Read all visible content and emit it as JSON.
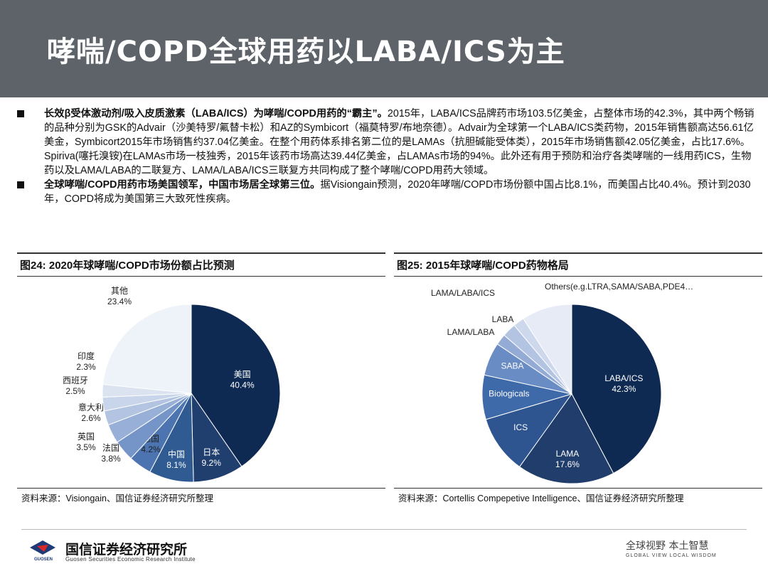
{
  "header": {
    "title": "哮喘/COPD全球用药以LABA/ICS为主"
  },
  "bullets": [
    {
      "bold": "长效β受体激动剂/吸入皮质激素（LABA/ICS）为哮喘/COPD用药的“霸主”。",
      "text": "2015年，LABA/ICS品牌药市场103.5亿美金，占整体市场的42.3%，其中两个畅销的品种分别为GSK的Advair（沙美特罗/氟替卡松）和AZ的Symbicort（福莫特罗/布地奈德）。Advair为全球第一个LABA/ICS类药物，2015年销售额高达56.61亿美金，Symbicort2015年市场销售约37.04亿美金。在整个用药体系排名第二位的是LAMAs（抗胆碱能受体类），2015年市场销售额42.05亿美金，占比17.6%。Spiriva(噻托溴铵)在LAMAs市场一枝独秀，2015年该药市场高达39.44亿美金，占LAMAs市场的94%。此外还有用于预防和治疗各类哮喘的一线用药ICS，生物药以及LAMA/LABA的二联复方、LAMA/LABA/ICS三联复方共同构成了整个哮喘/COPD用药大领域。"
    },
    {
      "bold": "全球哮喘/COPD用药市场美国领军，中国市场居全球第三位。",
      "text": "据Visiongain预测，2020年哮喘/COPD市场份额中国占比8.1%，而美国占比40.4%。预计到2030年，COPD将成为美国第三大致死性疾病。"
    }
  ],
  "panel_left": {
    "title": "图24:  2020年球哮喘/COPD市场份额占比预测",
    "source": "资料来源：Visiongain、国信证券经济研究所整理"
  },
  "panel_right": {
    "title": "图25:  2015年球哮喘/COPD药物格局",
    "source": "资料来源：Cortellis Compepetive Intelligence、国信证券经济研究所整理"
  },
  "chart_data": [
    {
      "type": "pie",
      "slices": [
        {
          "name": "美国",
          "value": 40.4,
          "label": "40.4%",
          "color": "#0f2a52"
        },
        {
          "name": "日本",
          "value": 9.2,
          "label": "9.2%",
          "color": "#213f6e"
        },
        {
          "name": "中国",
          "value": 8.1,
          "label": "8.1%",
          "color": "#2f5a92"
        },
        {
          "name": "德国",
          "value": 4.2,
          "label": "4.2%",
          "color": "#4c74b0"
        },
        {
          "name": "法国",
          "value": 3.8,
          "label": "3.8%",
          "color": "#7595c8"
        },
        {
          "name": "英国",
          "value": 3.5,
          "label": "3.5%",
          "color": "#98b0d8"
        },
        {
          "name": "意大利",
          "value": 2.6,
          "label": "2.6%",
          "color": "#b2c4e2"
        },
        {
          "name": "西班牙",
          "value": 2.5,
          "label": "2.5%",
          "color": "#c8d5ea"
        },
        {
          "name": "印度",
          "value": 2.3,
          "label": "2.3%",
          "color": "#dbe3f1"
        },
        {
          "name": "其他",
          "value": 23.4,
          "label": "23.4%",
          "color": "#eef2f9"
        }
      ]
    },
    {
      "type": "pie",
      "slices": [
        {
          "name": "LABA/ICS",
          "value": 42.3,
          "label": "42.3%",
          "color": "#0f2a52"
        },
        {
          "name": "LAMA",
          "value": 17.6,
          "label": "17.6%",
          "color": "#203d6b"
        },
        {
          "name": "ICS",
          "value": 10.5,
          "label": "",
          "color": "#2e5590"
        },
        {
          "name": "Biologicals",
          "value": 8.0,
          "label": "",
          "color": "#3f6aaa"
        },
        {
          "name": "SABA",
          "value": 6.0,
          "label": "",
          "color": "#6a8cc4"
        },
        {
          "name": "LAMA/LABA",
          "value": 2.0,
          "label": "",
          "color": "#94abd6"
        },
        {
          "name": "LABA",
          "value": 2.5,
          "label": "",
          "color": "#b3c4e3"
        },
        {
          "name": "LAMA/LABA/ICS",
          "value": 2.0,
          "label": "",
          "color": "#cdd8ed"
        },
        {
          "name": "Others(e.g.LTRA,SAMA/SABA,PDE4…",
          "value": 9.1,
          "label": "",
          "color": "#e6ebf5"
        }
      ]
    }
  ],
  "footer": {
    "company_cn": "国信证券经济研究所",
    "company_en": "Guosen Securities Economic Research Institute",
    "logo_text": "GUOSEN",
    "motto_cn": "全球视野  本土智慧",
    "motto_en": "GLOBAL VIEW   LOCAL WISDOM"
  }
}
